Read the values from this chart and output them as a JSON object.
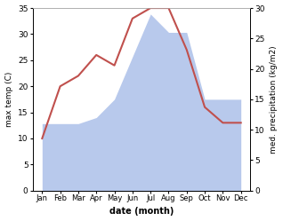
{
  "months": [
    "Jan",
    "Feb",
    "Mar",
    "Apr",
    "May",
    "Jun",
    "Jul",
    "Aug",
    "Sep",
    "Oct",
    "Nov",
    "Dec"
  ],
  "temp": [
    10,
    20,
    22,
    26,
    24,
    33,
    35,
    35,
    27,
    16,
    13,
    13
  ],
  "precip": [
    11,
    11,
    11,
    12,
    15,
    22,
    29,
    26,
    26,
    15,
    15,
    15
  ],
  "temp_color": "#c0504d",
  "precip_color": "#b8c9ec",
  "ylabel_left": "max temp (C)",
  "ylabel_right": "med. precipitation (kg/m2)",
  "xlabel": "date (month)",
  "ylim_left": [
    0,
    35
  ],
  "ylim_right": [
    0,
    30
  ],
  "yticks_left": [
    0,
    5,
    10,
    15,
    20,
    25,
    30,
    35
  ],
  "yticks_right": [
    0,
    5,
    10,
    15,
    20,
    25,
    30
  ],
  "temp_linewidth": 1.5,
  "bg_color": "#ffffff",
  "top_spine_color": "#aaaaaa"
}
